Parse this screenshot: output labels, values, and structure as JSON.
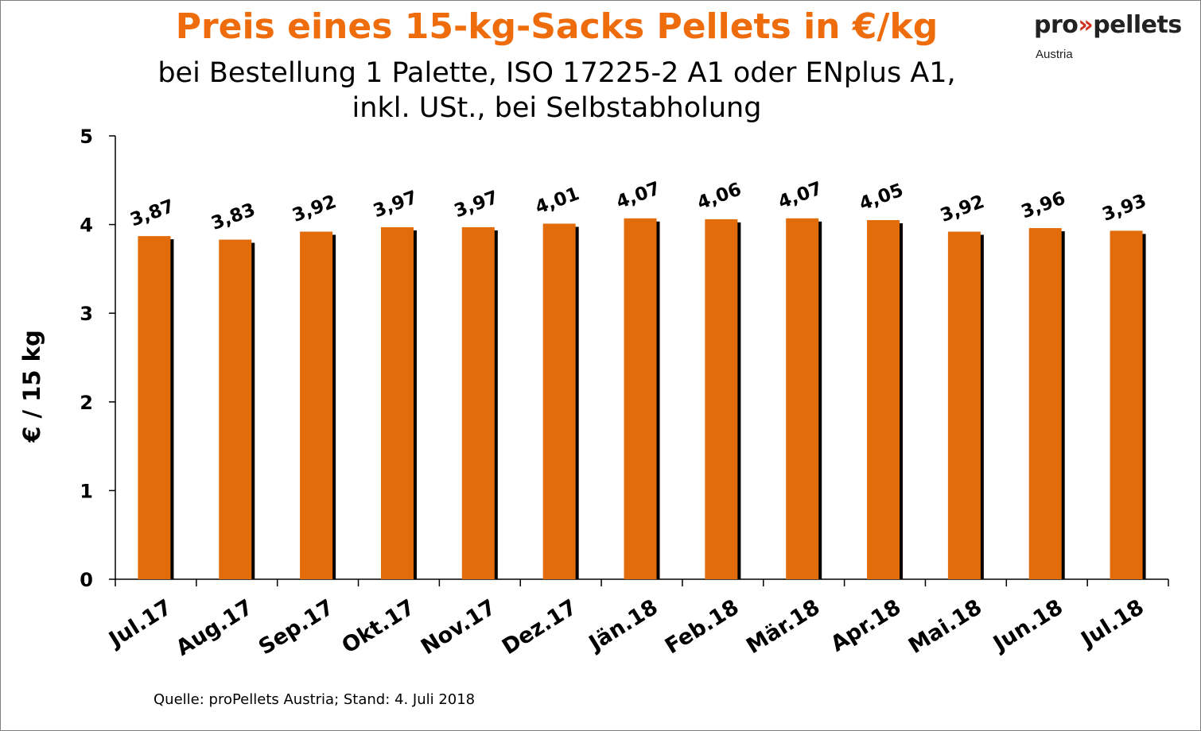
{
  "header": {
    "title": "Preis eines 15-kg-Sacks Pellets in €/kg",
    "subtitle_line1": "bei Bestellung 1 Palette, ISO 17225-2 A1 oder ENplus A1,",
    "subtitle_line2": "inkl. USt., bei Selbstabholung"
  },
  "logo": {
    "text_left": "pro",
    "chevrons": "»",
    "text_right": "pellets",
    "sub": "Austria"
  },
  "footer": {
    "source": "Quelle: proPellets Austria; Stand: 4. Juli 2018"
  },
  "colors": {
    "bar": "#e36c0a",
    "bar_shadow": "#000000",
    "title": "#ef6c0c"
  },
  "chart_data": {
    "type": "bar",
    "title": "Preis eines 15-kg-Sacks Pellets in €/kg",
    "subtitle": "bei Bestellung 1 Palette, ISO 17225-2 A1 oder ENplus A1, inkl. USt., bei Selbstabholung",
    "xlabel": "",
    "ylabel": "€ / 15 kg",
    "ylim": [
      0,
      5
    ],
    "yticks": [
      0,
      1,
      2,
      3,
      4,
      5
    ],
    "grid": false,
    "legend": "none",
    "categories": [
      "Jul.17",
      "Aug.17",
      "Sep.17",
      "Okt.17",
      "Nov.17",
      "Dez.17",
      "Jän.18",
      "Feb.18",
      "Mär.18",
      "Apr.18",
      "Mai.18",
      "Jun.18",
      "Jul.18"
    ],
    "values": [
      3.87,
      3.83,
      3.92,
      3.97,
      3.97,
      4.01,
      4.07,
      4.06,
      4.07,
      4.05,
      3.92,
      3.96,
      3.93
    ],
    "data_labels": [
      "3,87",
      "3,83",
      "3,92",
      "3,97",
      "3,97",
      "4,01",
      "4,07",
      "4,06",
      "4,07",
      "4,05",
      "3,92",
      "3,96",
      "3,93"
    ]
  }
}
